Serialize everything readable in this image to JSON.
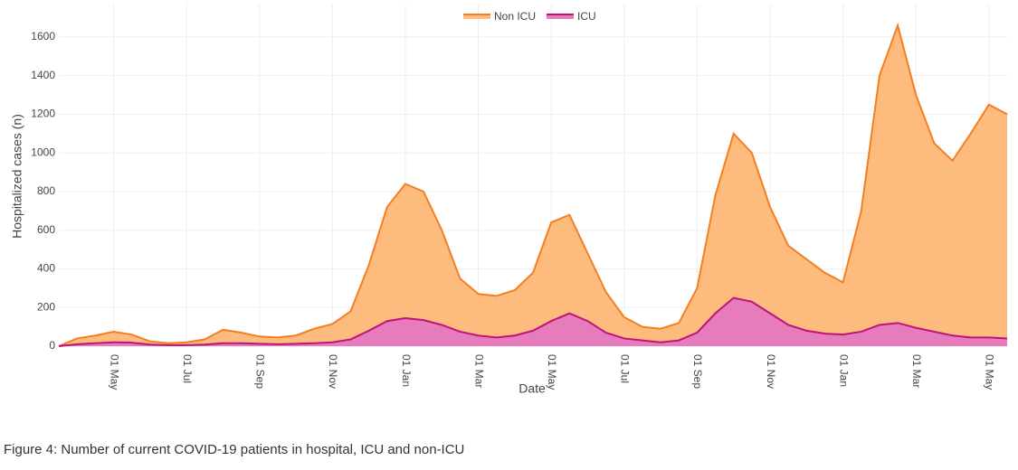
{
  "chart_data": {
    "type": "area",
    "caption": "Figure 4: Number of current COVID-19 patients in hospital, ICU and non-ICU",
    "xlabel": "Date",
    "ylabel": "Hospitalized cases (n)",
    "categories": [
      null,
      null,
      null,
      "01 May",
      null,
      null,
      null,
      "01 Jul",
      null,
      null,
      null,
      "01 Sep",
      null,
      null,
      null,
      "01 Nov",
      null,
      null,
      null,
      "01 Jan",
      null,
      null,
      null,
      "01 Mar",
      null,
      null,
      null,
      "01 May",
      null,
      null,
      null,
      "01 Jul",
      null,
      null,
      null,
      "01 Sep",
      null,
      null,
      null,
      "01 Nov",
      null,
      null,
      null,
      "01 Jan",
      null,
      null,
      null,
      "01 Mar",
      null,
      null,
      null,
      "01 May",
      null
    ],
    "series": [
      {
        "name": "Non ICU",
        "color": "#f47f20",
        "fill": "#fdbb7e",
        "values": [
          0,
          40,
          55,
          75,
          60,
          25,
          15,
          20,
          35,
          85,
          70,
          50,
          45,
          55,
          90,
          115,
          180,
          420,
          720,
          840,
          800,
          600,
          350,
          270,
          260,
          290,
          380,
          640,
          680,
          480,
          280,
          150,
          100,
          90,
          120,
          300,
          780,
          1100,
          1000,
          720,
          520,
          450,
          380,
          330,
          700,
          1400,
          1660,
          1300,
          1050,
          960,
          1100,
          1250,
          1200
        ]
      },
      {
        "name": "ICU",
        "color": "#c0137a",
        "fill": "#e67cbc",
        "values": [
          0,
          10,
          15,
          20,
          18,
          8,
          5,
          5,
          8,
          15,
          15,
          12,
          10,
          12,
          15,
          20,
          35,
          80,
          130,
          145,
          135,
          110,
          75,
          55,
          45,
          55,
          80,
          130,
          170,
          130,
          70,
          40,
          30,
          20,
          30,
          70,
          170,
          250,
          230,
          170,
          110,
          80,
          65,
          60,
          75,
          110,
          120,
          95,
          75,
          55,
          45,
          45,
          40
        ]
      }
    ],
    "ylim": [
      0,
      1768
    ],
    "yticks": [
      0,
      200,
      400,
      600,
      800,
      1000,
      1200,
      1400,
      1600
    ],
    "grid": true,
    "legend": "top"
  }
}
